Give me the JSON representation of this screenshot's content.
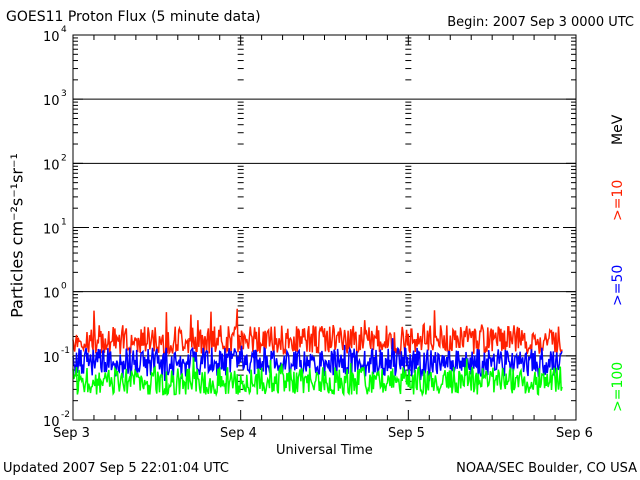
{
  "header": {
    "title": "GOES11 Proton Flux (5 minute data)",
    "begin": "Begin: 2007 Sep 3 0000 UTC"
  },
  "footer": {
    "updated": "Updated 2007 Sep  5 22:01:04 UTC",
    "credit": "NOAA/SEC Boulder, CO USA"
  },
  "chart_data": {
    "type": "line",
    "title": "GOES11 Proton Flux (5 minute data)",
    "xlabel": "Universal Time",
    "ylabel": "Particles cm⁻²s⁻¹sr⁻¹",
    "y_scale": "log",
    "ylim": [
      0.01,
      10000
    ],
    "xlim": [
      "2007-09-03T00:00Z",
      "2007-09-06T00:00Z"
    ],
    "x_ticks": [
      "Sep 3",
      "Sep 4",
      "Sep 5",
      "Sep 6"
    ],
    "y_ticks": [
      {
        "base": "10",
        "exp": "4"
      },
      {
        "base": "10",
        "exp": "3"
      },
      {
        "base": "10",
        "exp": "2"
      },
      {
        "base": "10",
        "exp": "1"
      },
      {
        "base": "10",
        "exp": "0"
      },
      {
        "base": "10",
        "exp": "-1"
      },
      {
        "base": "10",
        "exp": "-2"
      }
    ],
    "reference_lines": [
      {
        "value": 1000,
        "style": "solid"
      },
      {
        "value": 100,
        "style": "solid"
      },
      {
        "value": 10,
        "style": "dashed"
      },
      {
        "value": 1,
        "style": "solid"
      },
      {
        "value": 0.1,
        "style": "solid"
      }
    ],
    "energy_unit": "MeV",
    "series": [
      {
        "name": ">=10",
        "color": "#ff2000",
        "typical": 0.18,
        "min": 0.1,
        "max": 0.55
      },
      {
        "name": ">=50",
        "color": "#0000ff",
        "typical": 0.08,
        "min": 0.04,
        "max": 0.2
      },
      {
        "name": ">=100",
        "color": "#00ff00",
        "typical": 0.04,
        "min": 0.025,
        "max": 0.1
      }
    ],
    "grid": false
  }
}
